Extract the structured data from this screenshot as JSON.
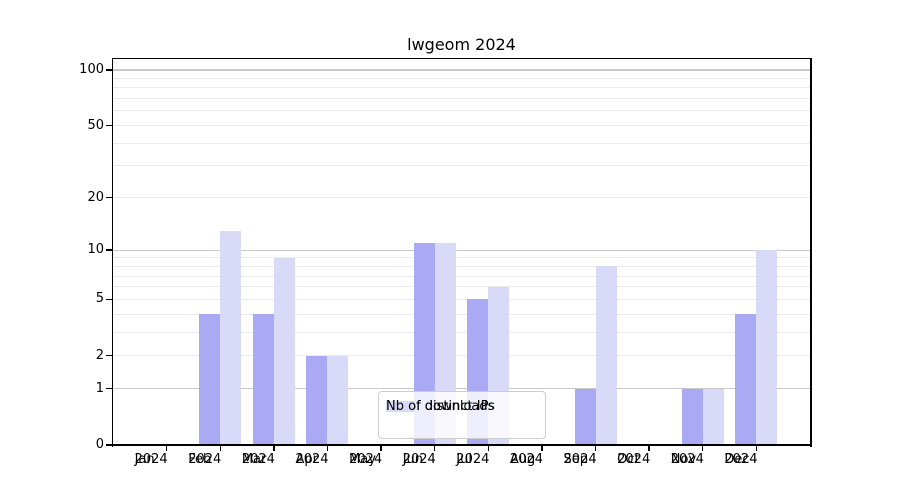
{
  "title": "lwgeom 2024",
  "chart_data": {
    "type": "bar",
    "title": "lwgeom 2024",
    "categories": [
      "Jan 2024",
      "Feb 2024",
      "Mar 2024",
      "Apr 2024",
      "May 2024",
      "Jun 2024",
      "Jul 2024",
      "Aug 2024",
      "Sep 2024",
      "Oct 2024",
      "Nov 2024",
      "Dec 2024"
    ],
    "series": [
      {
        "name": "Nb of distinct IPs",
        "color": "#a9a9f4",
        "values": [
          0,
          4,
          4,
          2,
          0,
          11,
          5,
          0,
          1,
          0,
          1,
          4
        ]
      },
      {
        "name": "Nb of downloads",
        "color": "#d9d9f8",
        "values": [
          0,
          13,
          9,
          2,
          0,
          11,
          6,
          0,
          8,
          0,
          1,
          10
        ]
      }
    ],
    "xlabel": "",
    "ylabel": "",
    "yscale": "log10(1+value)",
    "yticks": [
      0,
      1,
      2,
      5,
      10,
      20,
      50,
      100
    ],
    "ytick_labels": [
      "0",
      "1",
      "2",
      "5",
      "10",
      "20",
      "50",
      "100"
    ],
    "major_gridlines": [
      1,
      10,
      100
    ],
    "minor_gridlines": [
      2,
      3,
      4,
      5,
      6,
      7,
      8,
      9,
      20,
      30,
      40,
      50,
      60,
      70,
      80,
      90
    ],
    "ylim": [
      0,
      110
    ],
    "grid": true,
    "legend_position": "lower center inside plot"
  },
  "colors": {
    "background": "#ffffff",
    "spine": "#000000",
    "major_grid": "#c9c9c9",
    "minor_grid": "#ebebeb",
    "text": "#000000",
    "legend_border": "#cccccc",
    "series_distinct_ips": "#a9a9f4",
    "series_downloads": "#d9d9f8"
  }
}
